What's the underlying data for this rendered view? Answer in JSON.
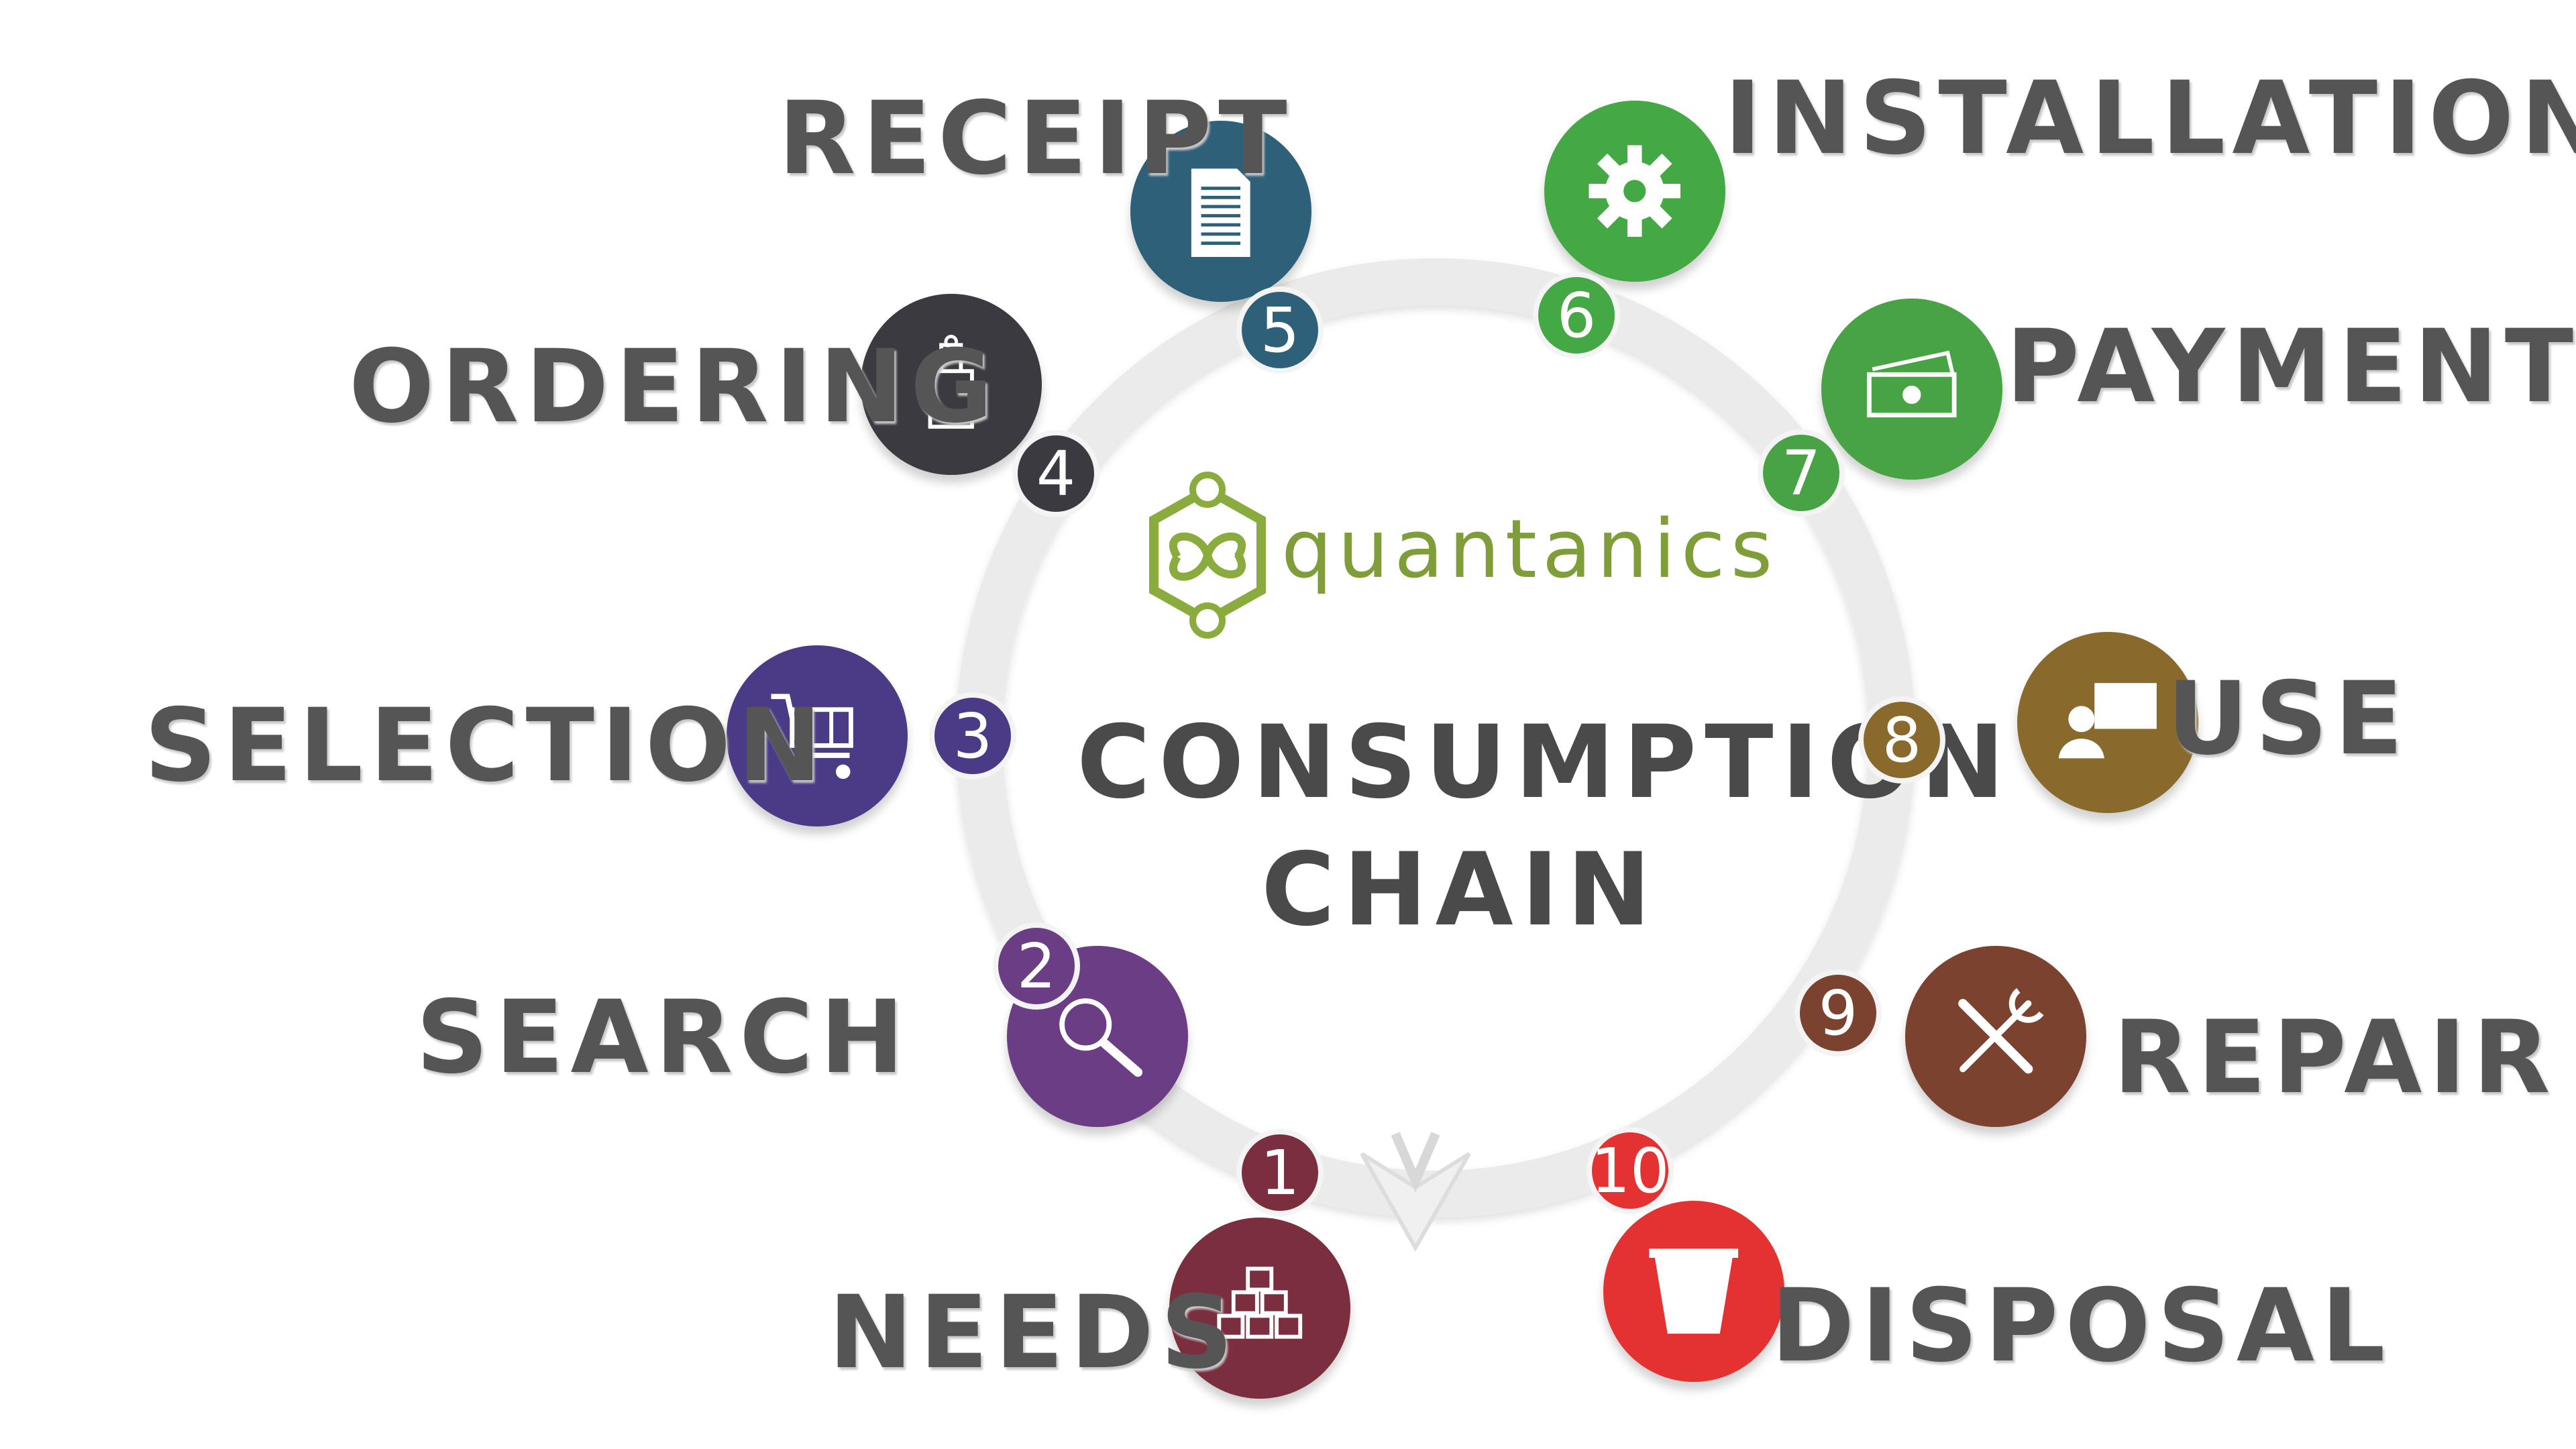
{
  "logo": {
    "text": "quantanics",
    "color": "#7f9e3a"
  },
  "title": {
    "line1": "CONSUMPTION",
    "line2": "CHAIN"
  },
  "steps": [
    {
      "num": "1",
      "label": "NEEDS",
      "color": "#7a2e3e",
      "icon": "blocks-icon"
    },
    {
      "num": "2",
      "label": "SEARCH",
      "color": "#6b3d85",
      "icon": "magnifier-icon"
    },
    {
      "num": "3",
      "label": "SELECTION",
      "color": "#4b3a86",
      "icon": "cart-icon"
    },
    {
      "num": "4",
      "label": "ORDERING",
      "color": "#3a3a40",
      "icon": "bag-icon"
    },
    {
      "num": "5",
      "label": "RECEIPT",
      "color": "#2f6079",
      "icon": "document-icon"
    },
    {
      "num": "6",
      "label": "INSTALLATION",
      "color": "#44a845",
      "icon": "gear-icon"
    },
    {
      "num": "7",
      "label": "PAYMENT",
      "color": "#48a345",
      "icon": "cash-icon"
    },
    {
      "num": "8",
      "label": "USE",
      "color": "#8a6a2c",
      "icon": "presentation-icon"
    },
    {
      "num": "9",
      "label": "REPAIR",
      "color": "#7c4230",
      "icon": "tools-icon"
    },
    {
      "num": "10",
      "label": "DISPOSAL",
      "color": "#e43131",
      "icon": "bin-icon"
    }
  ]
}
